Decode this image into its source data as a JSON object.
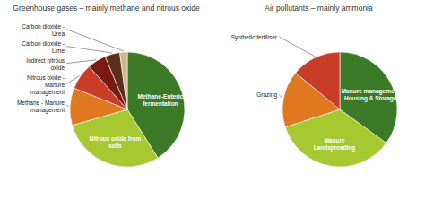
{
  "chart_data": [
    {
      "type": "pie",
      "title": "Greenhouse gases – mainly methane and nitrous oxide",
      "categories": [
        "Methane-Enteric\nfermentation",
        "Nitrous oxide from\nsoils",
        "Methane - Manure\nmanagement",
        "Nitrous oxide -\nManure\nmanagement",
        "Indirect nitrous\noxide",
        "Carbon dioxide -\nLime",
        "Carbon dioxide -\nUrea"
      ],
      "values": [
        39,
        28,
        10,
        7,
        5,
        4,
        2
      ],
      "colors": [
        "#3c7a28",
        "#a8c832",
        "#e07820",
        "#c83c28",
        "#7a1a14",
        "#5a3018",
        "#c8b88a"
      ]
    },
    {
      "type": "pie",
      "title": "Air pollutants – mainly ammonia",
      "categories": [
        "Manure management\nHousing & Storage",
        "Manure\nLandspreading",
        "Grazing",
        "Synthetic fertiliser"
      ],
      "values": [
        35,
        35,
        16,
        14
      ],
      "colors": [
        "#3c7a28",
        "#a8c832",
        "#e07820",
        "#c83c28"
      ]
    }
  ]
}
